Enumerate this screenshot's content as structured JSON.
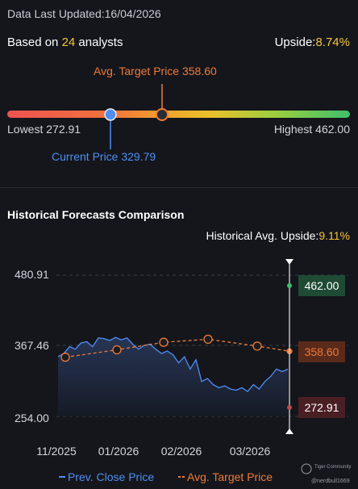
{
  "header": {
    "last_updated_label": "Data Last Updated:",
    "last_updated_value": "16/04/2026",
    "based_on_prefix": "Based on ",
    "analyst_count": "24",
    "based_on_suffix": " analysts",
    "upside_label": "Upside:",
    "upside_value": "8.74%"
  },
  "range": {
    "avg_target_label": "Avg. Target Price 358.60",
    "lowest_label": "Lowest 272.91",
    "highest_label": "Highest 462.00",
    "current_label": "Current Price 329.79",
    "lowest": 272.91,
    "highest": 462.0,
    "current": 329.79,
    "avg_target": 358.6
  },
  "history": {
    "title": "Historical Forecasts Comparison",
    "upside_label": "Historical Avg. Upside:",
    "upside_value": "9.11%"
  },
  "chart_data": {
    "type": "line",
    "y_ticks": [
      "480.91",
      "367.46",
      "254.00"
    ],
    "ylim": [
      254.0,
      480.91
    ],
    "x_ticks": [
      "11/2025",
      "01/2026",
      "02/2026",
      "03/2026"
    ],
    "tags": {
      "high": "462.00",
      "avg": "358.60",
      "low": "272.91"
    },
    "legend": [
      "Prev. Close Price",
      "Avg. Target Price"
    ],
    "series": [
      {
        "name": "Prev. Close Price",
        "color": "#4f8ef2",
        "values": [
          350,
          355,
          366,
          362,
          372,
          374,
          366,
          380,
          379,
          376,
          381,
          377,
          380,
          370,
          362,
          368,
          370,
          362,
          355,
          359,
          353,
          340,
          350,
          330,
          345,
          310,
          315,
          305,
          300,
          303,
          298,
          296,
          300,
          294,
          305,
          298,
          310,
          318,
          330,
          326,
          329.79
        ]
      },
      {
        "name": "Avg. Target Price",
        "color": "#f07a36",
        "values": [
          349,
          361,
          373,
          378,
          367,
          358.6
        ],
        "marker_index": [
          0,
          1,
          2,
          3,
          4,
          5
        ]
      }
    ]
  },
  "watermark": {
    "line1": "Tiger Community",
    "line2": "@nerdbull1669"
  }
}
